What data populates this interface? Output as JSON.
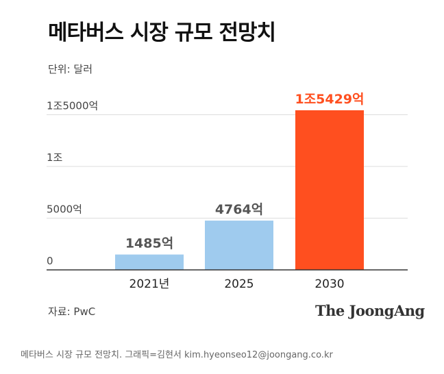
{
  "chart_data": {
    "type": "bar",
    "title": "메타버스 시장 규모 전망치",
    "unit_label": "단위: 달러",
    "categories": [
      "2021년",
      "2025",
      "2030"
    ],
    "values": [
      148500000000,
      476400000000,
      1542900000000
    ],
    "value_labels": [
      "1485억",
      "4764억",
      "1조5429억"
    ],
    "ylim": [
      0,
      1542900000000
    ],
    "yticks": [
      {
        "value": 0,
        "label": "0"
      },
      {
        "value": 500000000000,
        "label": "5000억"
      },
      {
        "value": 1000000000000,
        "label": "1조"
      },
      {
        "value": 1500000000000,
        "label": "1조5000억"
      }
    ],
    "grid": true,
    "colors": {
      "bar": "#9fcbee",
      "highlight": "#ff4f1f",
      "label": "#555555",
      "highlight_label": "#ff4f1f",
      "axis": "#333333",
      "grid": "#dddddd"
    },
    "source": "자료: PwC"
  },
  "logo_text": "The JoongAng",
  "caption": "메타버스 시장 규모 전망치. 그래픽=김현서 kim.hyeonseo12@joongang.co.kr"
}
